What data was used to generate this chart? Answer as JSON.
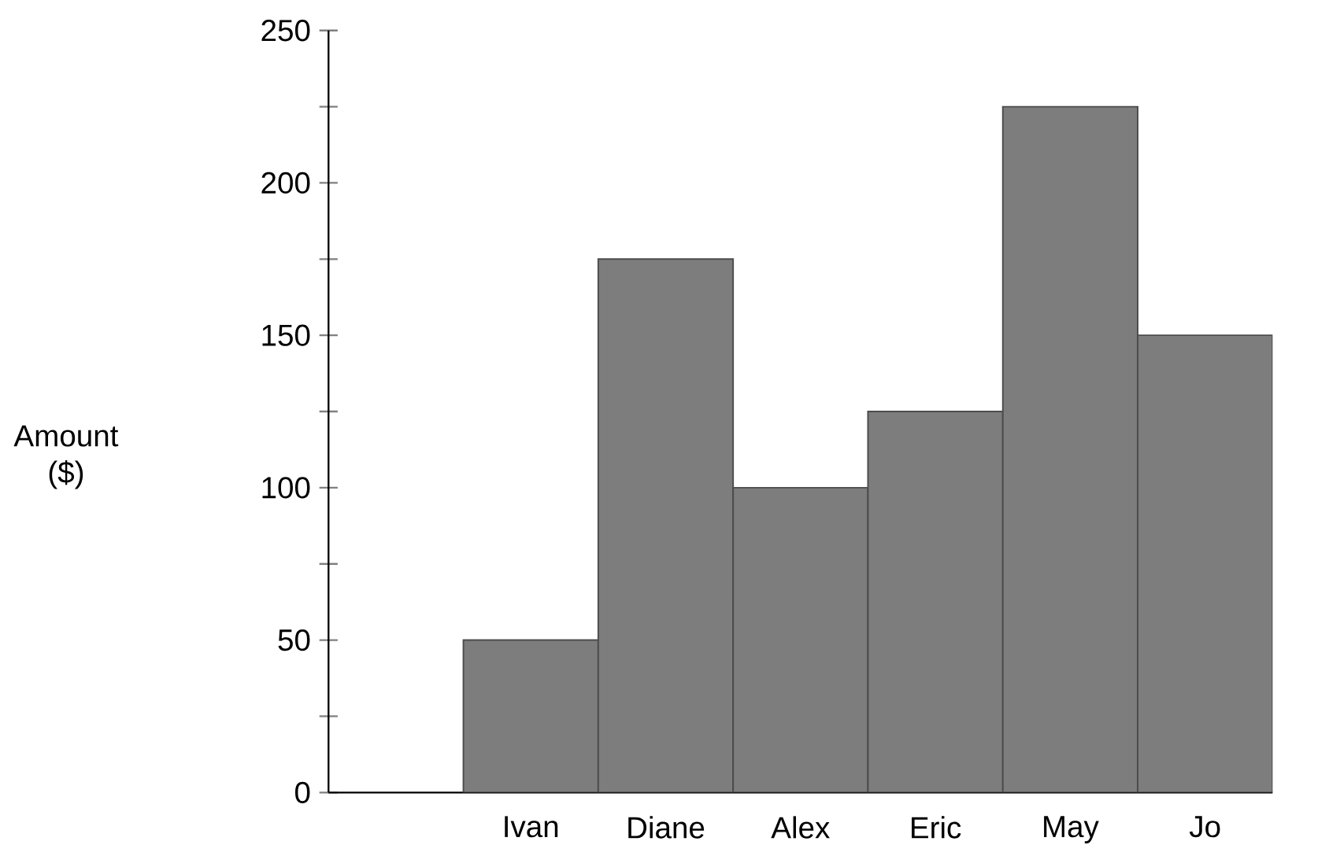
{
  "chart_data": {
    "type": "bar",
    "ylabel": "Amount ($)",
    "categories": [
      null,
      "Ivan",
      "Diane",
      "Alex",
      "Eric",
      "May",
      "Jo"
    ],
    "values": [
      null,
      50,
      175,
      100,
      125,
      225,
      150
    ],
    "color": "#7d7d7d",
    "ylim": [
      0,
      250
    ],
    "yticks": [
      0,
      {
        "value": 25,
        "label": null
      },
      50,
      {
        "value": 75,
        "label": null
      },
      100,
      {
        "value": 125,
        "label": null
      },
      150,
      {
        "value": 175,
        "label": null
      },
      200,
      {
        "value": 225,
        "label": null
      },
      250
    ],
    "grid": false
  }
}
